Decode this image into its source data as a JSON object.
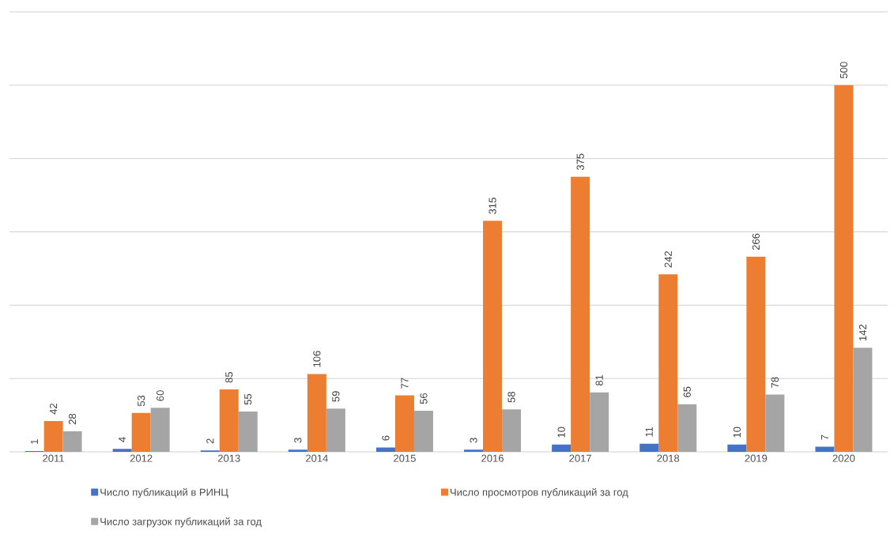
{
  "chart_data": {
    "type": "bar",
    "categories": [
      "2011",
      "2012",
      "2013",
      "2014",
      "2015",
      "2016",
      "2017",
      "2018",
      "2019",
      "2020"
    ],
    "series": [
      {
        "name": "Число публикаций в РИНЦ",
        "color": "#4472c4",
        "values": [
          1,
          4,
          2,
          3,
          6,
          3,
          10,
          11,
          10,
          7
        ]
      },
      {
        "name": "Число просмотров публикаций за год",
        "color": "#ed7d31",
        "values": [
          42,
          53,
          85,
          106,
          77,
          315,
          375,
          242,
          266,
          500
        ]
      },
      {
        "name": "Число загрузок публикаций за год",
        "color": "#a5a5a5",
        "values": [
          28,
          60,
          55,
          59,
          56,
          58,
          81,
          65,
          78,
          142
        ]
      }
    ],
    "ylim": [
      0,
      600
    ],
    "yticks": [
      {
        "value": 0,
        "label": null
      },
      {
        "value": 100,
        "label": null
      },
      {
        "value": 200,
        "label": null
      },
      {
        "value": 300,
        "label": null
      },
      {
        "value": 400,
        "label": null
      },
      {
        "value": 500,
        "label": null
      },
      {
        "value": 600,
        "label": null
      }
    ],
    "grid": "y",
    "legend": "bottom",
    "tick_labels": "x",
    "data_labels": true
  }
}
